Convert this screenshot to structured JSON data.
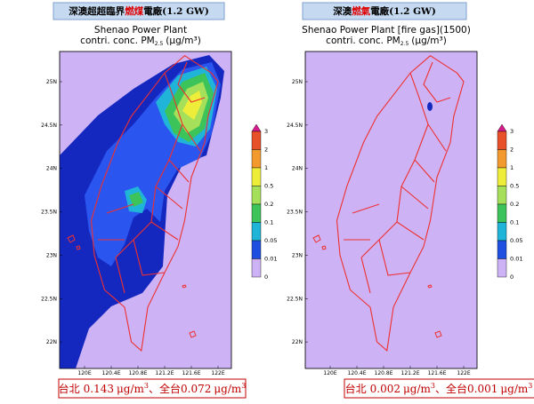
{
  "panels": [
    {
      "header": {
        "prefix": "深澳超超臨界",
        "highlight": "燃煤",
        "suffix": "電廠(1.2 GW)"
      },
      "plot_title": "Shenao Power Plant",
      "plot_subtitle": "contri. conc. PM",
      "subscript": "2.5",
      "units": "(μg/m³)",
      "lat_ticks": [
        "25N",
        "24.5N",
        "24N",
        "23.5N",
        "23N",
        "22.5N",
        "22N"
      ],
      "lon_ticks": [
        "120E",
        "120.4E",
        "120.8E",
        "121.2E",
        "121.6E",
        "122E"
      ],
      "colorbar": {
        "labels": [
          3,
          2,
          1,
          0.5,
          0.2,
          0.1,
          0.05,
          0.01,
          0
        ],
        "colors": [
          "#d81b8c",
          "#e8502a",
          "#f29a2e",
          "#eeee3a",
          "#a6e05a",
          "#3cc35a",
          "#1fb4d8",
          "#1f4fe0",
          "#cdb3f5"
        ]
      },
      "footer": {
        "place1": "台北",
        "value1": "0.143",
        "unit1": "μg/m",
        "exp1": "3",
        "place2": "、全台",
        "value2": "0.072",
        "unit2": "μg/m",
        "exp2": "3"
      }
    },
    {
      "header": {
        "prefix": "深澳",
        "highlight": "燃氣",
        "suffix": "電廠(1.2 GW)"
      },
      "plot_title": "Shenao Power Plant [fire gas](1500)",
      "plot_subtitle": "contri. conc. PM",
      "subscript": "2.5",
      "units": "(μg/m³)",
      "lat_ticks": [
        "25N",
        "24.5N",
        "24N",
        "23.5N",
        "23N",
        "22.5N",
        "22N"
      ],
      "lon_ticks": [
        "120E",
        "120.4E",
        "120.8E",
        "121.2E",
        "121.6E",
        "122E"
      ],
      "colorbar": {
        "labels": [
          3,
          2,
          1,
          0.5,
          0.2,
          0.1,
          0.05,
          0.01,
          0
        ],
        "colors": [
          "#d81b8c",
          "#e8502a",
          "#f29a2e",
          "#eeee3a",
          "#a6e05a",
          "#3cc35a",
          "#1fb4d8",
          "#1f4fe0",
          "#cdb3f5"
        ]
      },
      "footer": {
        "place1": "台北",
        "value1": "0.002",
        "unit1": "μg/m",
        "exp1": "3",
        "place2": "、全台",
        "value2": "0.001",
        "unit2": "μg/m",
        "exp2": "3"
      }
    }
  ]
}
